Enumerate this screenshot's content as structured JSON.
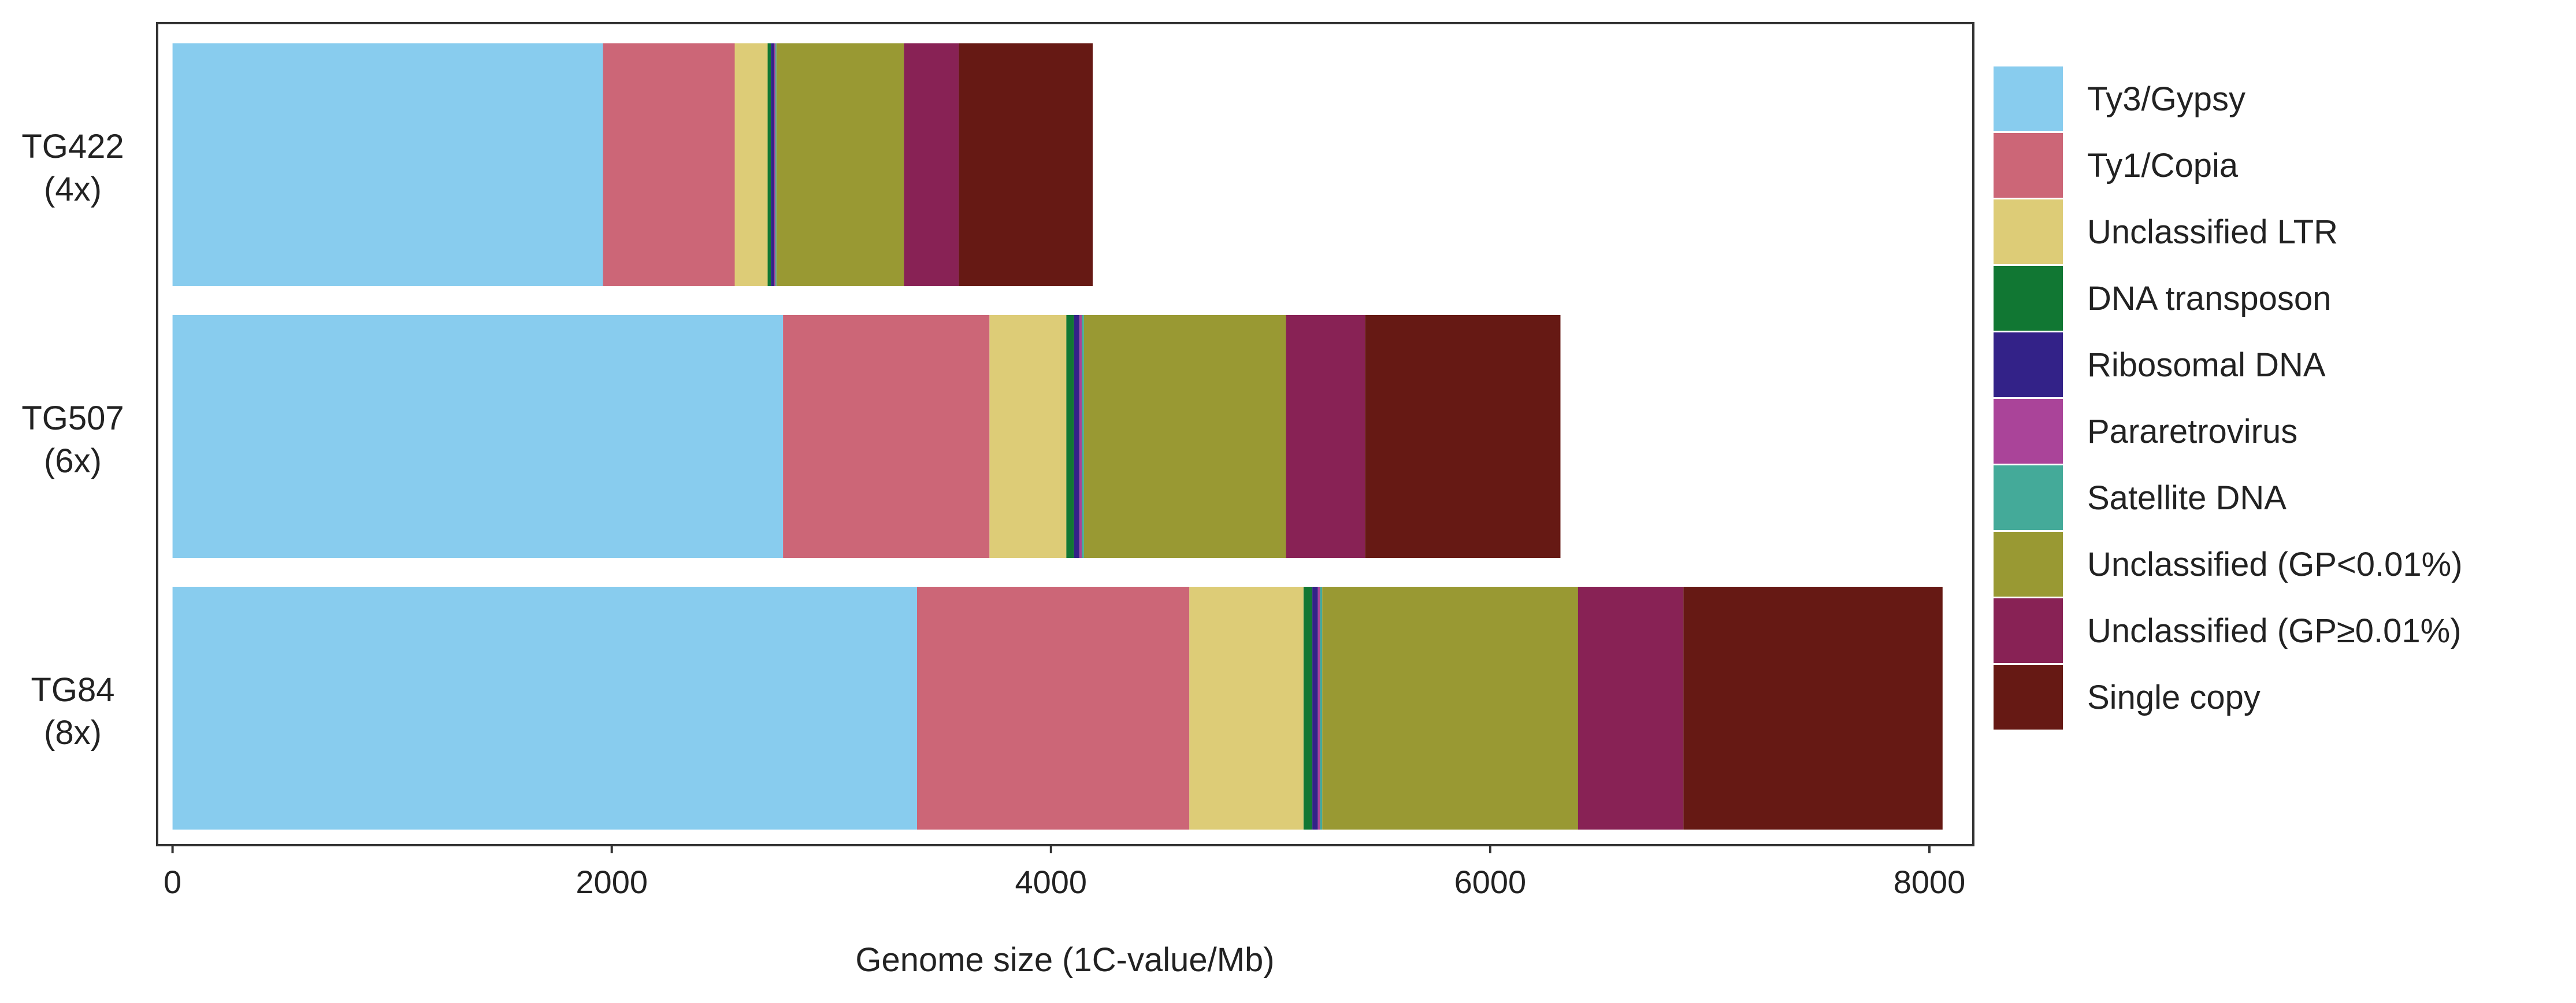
{
  "chart_data": {
    "type": "bar",
    "orientation": "horizontal",
    "stacked": true,
    "title": "",
    "xlabel": "Genome size (1C-value/Mb)",
    "ylabel": "",
    "xlim": [
      -70,
      8200
    ],
    "xticks": [
      0,
      2000,
      4000,
      6000,
      8000
    ],
    "categories": [
      {
        "name": "TG422",
        "ploidy": "(4x)"
      },
      {
        "name": "TG507",
        "ploidy": "(6x)"
      },
      {
        "name": "TG84",
        "ploidy": "(8x)"
      }
    ],
    "series": [
      {
        "name": "Ty3/Gypsy",
        "color": "#88CCEE",
        "values": [
          1960,
          2780,
          3390
        ]
      },
      {
        "name": "Ty1/Copia",
        "color": "#CC6677",
        "values": [
          600,
          940,
          1240
        ]
      },
      {
        "name": "Unclassified LTR",
        "color": "#DDCC77",
        "values": [
          150,
          350,
          520
        ]
      },
      {
        "name": "DNA transposon",
        "color": "#117733",
        "values": [
          15,
          35,
          40
        ]
      },
      {
        "name": "Ribosomal DNA",
        "color": "#332288",
        "values": [
          15,
          25,
          25
        ]
      },
      {
        "name": "Pararetrovirus",
        "color": "#AA4499",
        "values": [
          5,
          10,
          10
        ]
      },
      {
        "name": "Satellite DNA",
        "color": "#44AA99",
        "values": [
          5,
          10,
          10
        ]
      },
      {
        "name": "Unclassified (GP<0.01%)",
        "color": "#999933",
        "values": [
          580,
          920,
          1165
        ]
      },
      {
        "name": "Unclassified (GP≥0.01%)",
        "color": "#882255",
        "values": [
          250,
          360,
          480
        ]
      },
      {
        "name": "Single copy",
        "color": "#661914",
        "values": [
          610,
          890,
          1180
        ]
      }
    ],
    "legend_position": "right",
    "grid": false
  }
}
